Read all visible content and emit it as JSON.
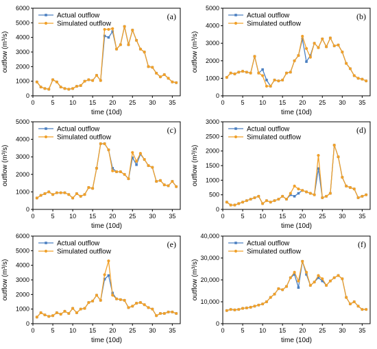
{
  "colors": {
    "actual": "#4a7fc1",
    "simulated": "#f0a02a",
    "axis": "#000000"
  },
  "legend": {
    "actual": "Actual outflow",
    "simulated": "Simulated outflow"
  },
  "chart_data": [
    {
      "type": "line",
      "panel": "(a)",
      "xlabel": "time (10d)",
      "ylabel": "outflow (m³/s)",
      "xlim": [
        0,
        37
      ],
      "ylim": [
        0,
        6000
      ],
      "xticks": [
        0,
        5,
        10,
        15,
        20,
        25,
        30,
        35
      ],
      "yticks": [
        0,
        1000,
        2000,
        3000,
        4000,
        5000,
        6000
      ],
      "ytick_labels": [
        "0",
        "1000",
        "2000",
        "3000",
        "4000",
        "5000",
        "6000"
      ],
      "x": [
        1,
        2,
        3,
        4,
        5,
        6,
        7,
        8,
        9,
        10,
        11,
        12,
        13,
        14,
        15,
        16,
        17,
        18,
        19,
        20,
        21,
        22,
        23,
        24,
        25,
        26,
        27,
        28,
        29,
        30,
        31,
        32,
        33,
        34,
        35,
        36
      ],
      "series": [
        {
          "name": "Actual outflow",
          "values": [
            950,
            600,
            500,
            450,
            1100,
            950,
            600,
            500,
            450,
            500,
            650,
            700,
            1000,
            1100,
            1050,
            1400,
            1050,
            4100,
            4000,
            4400,
            3200,
            3500,
            4750,
            3500,
            4500,
            3800,
            3200,
            3000,
            2000,
            1950,
            1550,
            1300,
            1450,
            1200,
            950,
            900
          ]
        },
        {
          "name": "Simulated outflow",
          "values": [
            950,
            600,
            500,
            450,
            1100,
            950,
            600,
            500,
            450,
            500,
            650,
            700,
            1000,
            1100,
            1050,
            1400,
            1050,
            4550,
            4550,
            4600,
            3200,
            3500,
            4750,
            3500,
            4500,
            3800,
            3200,
            3000,
            2000,
            1950,
            1550,
            1300,
            1450,
            1200,
            950,
            900
          ]
        }
      ]
    },
    {
      "type": "line",
      "panel": "(b)",
      "xlabel": "time (10d)",
      "ylabel": "outflow (m³/s)",
      "xlim": [
        0,
        37
      ],
      "ylim": [
        0,
        5000
      ],
      "xticks": [
        0,
        5,
        10,
        15,
        20,
        25,
        30,
        35
      ],
      "yticks": [
        0,
        1000,
        2000,
        3000,
        4000,
        5000
      ],
      "ytick_labels": [
        "0",
        "1000",
        "2000",
        "3000",
        "4000",
        "5000"
      ],
      "x": [
        1,
        2,
        3,
        4,
        5,
        6,
        7,
        8,
        9,
        10,
        11,
        12,
        13,
        14,
        15,
        16,
        17,
        18,
        19,
        20,
        21,
        22,
        23,
        24,
        25,
        26,
        27,
        28,
        29,
        30,
        31,
        32,
        33,
        34,
        35,
        36
      ],
      "series": [
        {
          "name": "Actual outflow",
          "values": [
            1050,
            1300,
            1250,
            1350,
            1400,
            1350,
            1300,
            2250,
            1300,
            1500,
            900,
            550,
            900,
            850,
            900,
            1300,
            1350,
            2000,
            2300,
            3250,
            1950,
            2300,
            3000,
            2750,
            3250,
            2800,
            3300,
            2850,
            2900,
            2500,
            1850,
            1550,
            1150,
            1000,
            950,
            850
          ]
        },
        {
          "name": "Simulated outflow",
          "values": [
            1050,
            1300,
            1250,
            1350,
            1400,
            1350,
            1300,
            2250,
            1300,
            1150,
            550,
            550,
            900,
            850,
            900,
            1300,
            1350,
            2000,
            2300,
            3400,
            2700,
            2200,
            3000,
            2750,
            3250,
            2800,
            3300,
            2850,
            2900,
            2500,
            1850,
            1550,
            1150,
            1000,
            950,
            850
          ]
        }
      ]
    },
    {
      "type": "line",
      "panel": "(c)",
      "xlabel": "time (10d)",
      "ylabel": "outflow (m³/s)",
      "xlim": [
        0,
        37
      ],
      "ylim": [
        0,
        5000
      ],
      "xticks": [
        0,
        5,
        10,
        15,
        20,
        25,
        30,
        35
      ],
      "yticks": [
        0,
        1000,
        2000,
        3000,
        4000,
        5000
      ],
      "ytick_labels": [
        "0",
        "1000",
        "2000",
        "3000",
        "4000",
        "5000"
      ],
      "x": [
        1,
        2,
        3,
        4,
        5,
        6,
        7,
        8,
        9,
        10,
        11,
        12,
        13,
        14,
        15,
        16,
        17,
        18,
        19,
        20,
        21,
        22,
        23,
        24,
        25,
        26,
        27,
        28,
        29,
        30,
        31,
        32,
        33,
        34,
        35,
        36
      ],
      "series": [
        {
          "name": "Actual outflow",
          "values": [
            650,
            800,
            900,
            1000,
            850,
            950,
            950,
            950,
            850,
            650,
            900,
            750,
            850,
            1250,
            1200,
            2350,
            3750,
            3750,
            3400,
            2350,
            2150,
            2150,
            2000,
            1750,
            2950,
            2550,
            3150,
            2850,
            2500,
            2400,
            1600,
            1650,
            1400,
            1350,
            1600,
            1300
          ]
        },
        {
          "name": "Simulated outflow",
          "values": [
            650,
            800,
            900,
            1000,
            850,
            950,
            950,
            950,
            850,
            650,
            900,
            750,
            850,
            1250,
            1200,
            2350,
            3750,
            3750,
            3400,
            2200,
            2150,
            2150,
            2000,
            1750,
            3250,
            2750,
            3200,
            2850,
            2500,
            2400,
            1600,
            1650,
            1400,
            1350,
            1600,
            1300
          ]
        }
      ]
    },
    {
      "type": "line",
      "panel": "(d)",
      "xlabel": "time (10d)",
      "ylabel": "outflow (m³/s)",
      "xlim": [
        0,
        37
      ],
      "ylim": [
        0,
        3000
      ],
      "xticks": [
        0,
        5,
        10,
        15,
        20,
        25,
        30,
        35
      ],
      "yticks": [
        0,
        500,
        1000,
        1500,
        2000,
        2500,
        3000
      ],
      "ytick_labels": [
        "0",
        "500",
        "1000",
        "1500",
        "2000",
        "2500",
        "3000"
      ],
      "x": [
        1,
        2,
        3,
        4,
        5,
        6,
        7,
        8,
        9,
        10,
        11,
        12,
        13,
        14,
        15,
        16,
        17,
        18,
        19,
        20,
        21,
        22,
        23,
        24,
        25,
        26,
        27,
        28,
        29,
        30,
        31,
        32,
        33,
        34,
        35,
        36
      ],
      "series": [
        {
          "name": "Actual outflow",
          "values": [
            250,
            150,
            150,
            200,
            250,
            300,
            350,
            400,
            450,
            200,
            300,
            250,
            300,
            350,
            450,
            350,
            500,
            450,
            550,
            650,
            600,
            550,
            500,
            1400,
            400,
            450,
            550,
            2200,
            1800,
            1100,
            800,
            750,
            700,
            400,
            450,
            500
          ]
        },
        {
          "name": "Simulated outflow",
          "values": [
            250,
            150,
            150,
            200,
            250,
            300,
            350,
            400,
            450,
            200,
            300,
            250,
            300,
            350,
            450,
            350,
            550,
            800,
            700,
            650,
            600,
            550,
            500,
            1850,
            400,
            450,
            550,
            2200,
            1800,
            1100,
            800,
            750,
            700,
            400,
            450,
            500
          ]
        }
      ]
    },
    {
      "type": "line",
      "panel": "(e)",
      "xlabel": "time (10d)",
      "ylabel": "outflow (m³/s)",
      "xlim": [
        0,
        37
      ],
      "ylim": [
        0,
        6000
      ],
      "xticks": [
        0,
        5,
        10,
        15,
        20,
        25,
        30,
        35
      ],
      "yticks": [
        0,
        1000,
        2000,
        3000,
        4000,
        5000,
        6000
      ],
      "ytick_labels": [
        "0",
        "1000",
        "2000",
        "3000",
        "4000",
        "5000",
        "6000"
      ],
      "x": [
        1,
        2,
        3,
        4,
        5,
        6,
        7,
        8,
        9,
        10,
        11,
        12,
        13,
        14,
        15,
        16,
        17,
        18,
        19,
        20,
        21,
        22,
        23,
        24,
        25,
        26,
        27,
        28,
        29,
        30,
        31,
        32,
        33,
        34,
        35,
        36
      ],
      "series": [
        {
          "name": "Actual outflow",
          "values": [
            450,
            750,
            600,
            500,
            550,
            750,
            650,
            850,
            700,
            1050,
            750,
            1000,
            1050,
            1450,
            1550,
            1950,
            1600,
            3050,
            3300,
            2100,
            1700,
            1650,
            1600,
            1100,
            1200,
            1400,
            1450,
            1300,
            1100,
            1000,
            550,
            700,
            700,
            800,
            800,
            700
          ]
        },
        {
          "name": "Simulated outflow",
          "values": [
            450,
            750,
            600,
            500,
            550,
            750,
            650,
            850,
            700,
            1050,
            750,
            1000,
            1050,
            1450,
            1550,
            1950,
            1600,
            3350,
            4300,
            1950,
            1700,
            1650,
            1600,
            1100,
            1200,
            1400,
            1450,
            1300,
            1100,
            1000,
            550,
            700,
            700,
            800,
            800,
            700
          ]
        }
      ]
    },
    {
      "type": "line",
      "panel": "(f)",
      "xlabel": "time (10d)",
      "ylabel": "outflow (m³/s)",
      "xlim": [
        0,
        37
      ],
      "ylim": [
        0,
        40000
      ],
      "xticks": [
        0,
        5,
        10,
        15,
        20,
        25,
        30,
        35
      ],
      "yticks": [
        0,
        10000,
        20000,
        30000,
        40000
      ],
      "ytick_labels": [
        "0",
        "10,000",
        "20,000",
        "30,000",
        "40,000"
      ],
      "x": [
        1,
        2,
        3,
        4,
        5,
        6,
        7,
        8,
        9,
        10,
        11,
        12,
        13,
        14,
        15,
        16,
        17,
        18,
        19,
        20,
        21,
        22,
        23,
        24,
        25,
        26,
        27,
        28,
        29,
        30,
        31,
        32,
        33,
        34,
        35,
        36
      ],
      "series": [
        {
          "name": "Actual outflow",
          "values": [
            6000,
            6500,
            6300,
            6500,
            7000,
            7200,
            7500,
            8000,
            8500,
            9000,
            10000,
            12000,
            13500,
            16000,
            15500,
            17000,
            21000,
            22500,
            16500,
            28500,
            22500,
            17500,
            19000,
            21000,
            19500,
            17500,
            19500,
            21000,
            22000,
            20500,
            12000,
            9000,
            10000,
            8000,
            6500,
            6500
          ]
        },
        {
          "name": "Simulated outflow",
          "values": [
            6000,
            6500,
            6300,
            6500,
            7000,
            7200,
            7500,
            8000,
            8500,
            9000,
            10000,
            12000,
            13500,
            16000,
            15500,
            17000,
            21000,
            23500,
            19500,
            28500,
            23500,
            17500,
            19000,
            22000,
            20500,
            17500,
            19500,
            21000,
            22000,
            20500,
            12000,
            9000,
            10000,
            8000,
            6500,
            6500
          ]
        }
      ]
    }
  ]
}
